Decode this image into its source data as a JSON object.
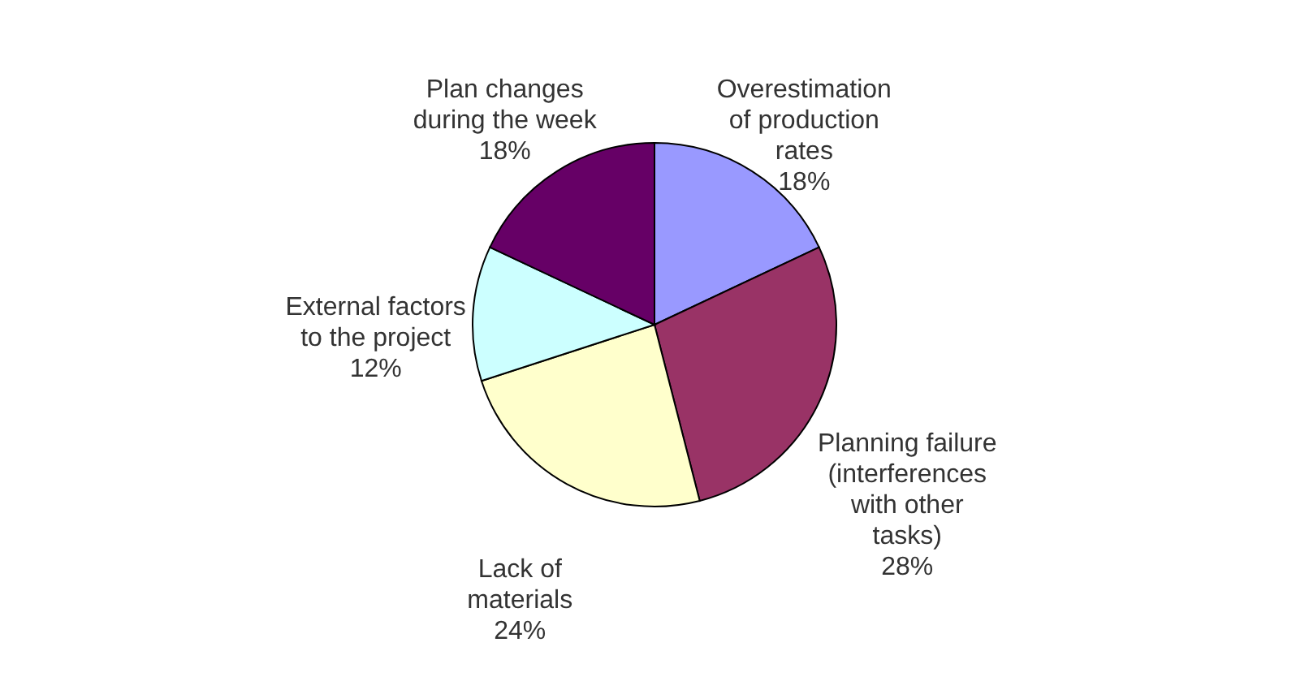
{
  "chart_data": {
    "type": "pie",
    "categories": [
      "Overestimation of production rates",
      "Planning failure (interferences with other tasks)",
      "Lack of materials",
      "External factors to the project",
      "Plan changes during the week"
    ],
    "values": [
      18,
      28,
      24,
      12,
      18
    ],
    "value_labels": [
      "18%",
      "28%",
      "24%",
      "12%",
      "18%"
    ],
    "colors": [
      "#9999ff",
      "#993366",
      "#ffffcc",
      "#ccffff",
      "#660066"
    ]
  }
}
